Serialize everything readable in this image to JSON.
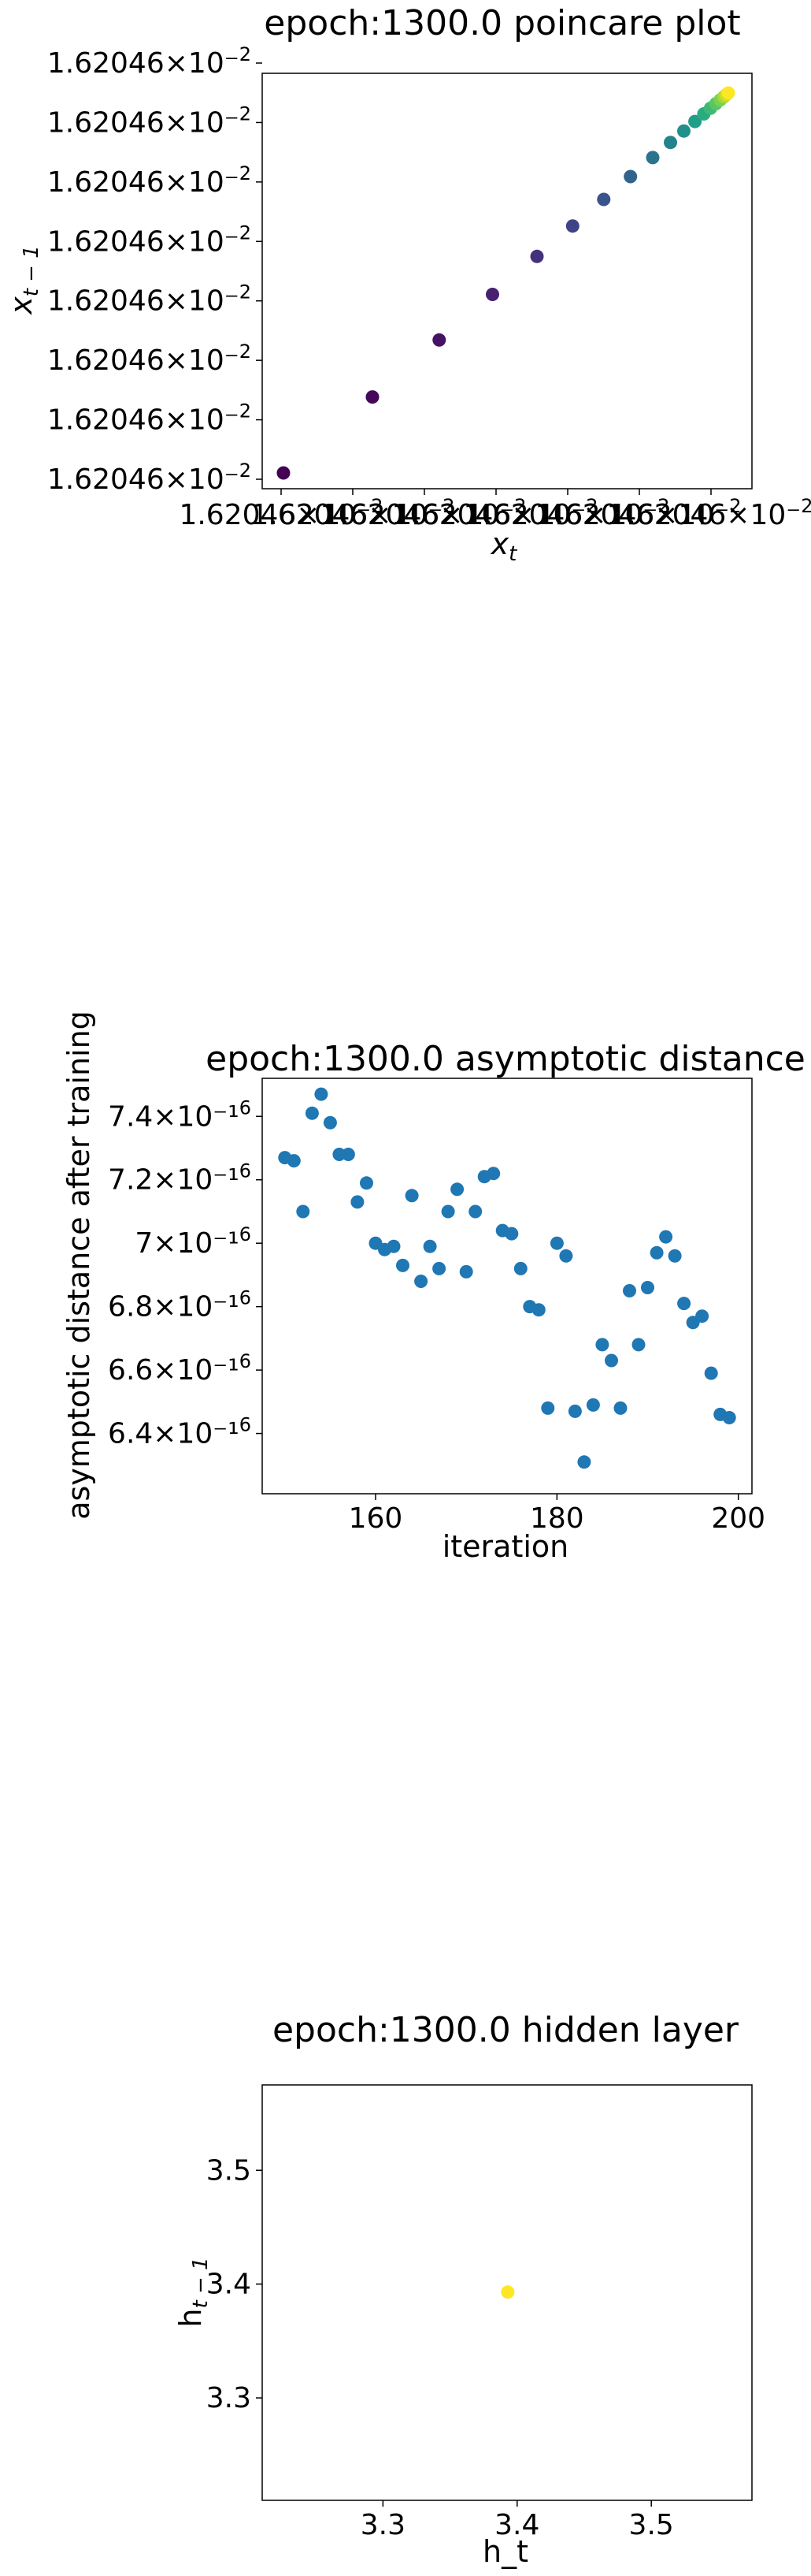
{
  "chart_data": [
    {
      "type": "scatter",
      "title": "epoch:1300.0 poincare plot",
      "xlabel": "x_t",
      "ylabel": "x_{t-1}",
      "colormap": "viridis",
      "xtick_labels": [
        "1.62046×10⁻²",
        "1.62046×10⁻²",
        "1.62046×10⁻²",
        "1.62046×10⁻²",
        "1.62046×10⁻²",
        "1.62046×10⁻²",
        "1.62046×10⁻²"
      ],
      "ytick_labels": [
        "1.62046×10⁻²",
        "1.62046×10⁻²",
        "1.62046×10⁻²",
        "1.62046×10⁻²",
        "1.62046×10⁻²",
        "1.62046×10⁻²",
        "1.62046×10⁻²",
        "1.62046×10⁻²"
      ],
      "xlim": [
        0,
        1
      ],
      "ylim": [
        0,
        1
      ],
      "points": [
        {
          "x": 0.0,
          "y": 0.0,
          "c": 0.0
        },
        {
          "x": 0.2,
          "y": 0.2,
          "c": 0.02
        },
        {
          "x": 0.35,
          "y": 0.35,
          "c": 0.05
        },
        {
          "x": 0.47,
          "y": 0.47,
          "c": 0.09
        },
        {
          "x": 0.57,
          "y": 0.57,
          "c": 0.14
        },
        {
          "x": 0.65,
          "y": 0.65,
          "c": 0.2
        },
        {
          "x": 0.72,
          "y": 0.72,
          "c": 0.26
        },
        {
          "x": 0.78,
          "y": 0.78,
          "c": 0.32
        },
        {
          "x": 0.83,
          "y": 0.83,
          "c": 0.38
        },
        {
          "x": 0.87,
          "y": 0.87,
          "c": 0.44
        },
        {
          "x": 0.9,
          "y": 0.9,
          "c": 0.5
        },
        {
          "x": 0.925,
          "y": 0.925,
          "c": 0.56
        },
        {
          "x": 0.945,
          "y": 0.945,
          "c": 0.62
        },
        {
          "x": 0.96,
          "y": 0.96,
          "c": 0.68
        },
        {
          "x": 0.972,
          "y": 0.972,
          "c": 0.74
        },
        {
          "x": 0.982,
          "y": 0.982,
          "c": 0.8
        },
        {
          "x": 0.99,
          "y": 0.99,
          "c": 0.86
        },
        {
          "x": 0.995,
          "y": 0.995,
          "c": 0.92
        },
        {
          "x": 1.0,
          "y": 1.0,
          "c": 1.0
        }
      ]
    },
    {
      "type": "scatter",
      "title": "epoch:1300.0 asymptotic distance",
      "xlabel": "iteration",
      "ylabel": "asymptotic distance after training",
      "color": "#1f77b4",
      "xlim": [
        147.5,
        201.5
      ],
      "ylim": [
        6.21e-16,
        7.52e-16
      ],
      "xticks": [
        160,
        180,
        200
      ],
      "yticks": [
        {
          "value": 6.4e-16,
          "label": "6.4×10⁻¹⁶"
        },
        {
          "value": 6.6e-16,
          "label": "6.6×10⁻¹⁶"
        },
        {
          "value": 6.8e-16,
          "label": "6.8×10⁻¹⁶"
        },
        {
          "value": 7e-16,
          "label": "7×10⁻¹⁶"
        },
        {
          "value": 7.2e-16,
          "label": "7.2×10⁻¹⁶"
        },
        {
          "value": 7.4e-16,
          "label": "7.4×10⁻¹⁶"
        }
      ],
      "x": [
        150,
        151,
        152,
        153,
        154,
        155,
        156,
        157,
        158,
        159,
        160,
        161,
        162,
        163,
        164,
        165,
        166,
        167,
        168,
        169,
        170,
        171,
        172,
        173,
        174,
        175,
        176,
        177,
        178,
        179,
        180,
        181,
        182,
        183,
        184,
        185,
        186,
        187,
        188,
        189,
        190,
        191,
        192,
        193,
        194,
        195,
        196,
        197,
        198,
        199
      ],
      "y": [
        7.27e-16,
        7.26e-16,
        7.1e-16,
        7.41e-16,
        7.47e-16,
        7.38e-16,
        7.28e-16,
        7.28e-16,
        7.13e-16,
        7.19e-16,
        7e-16,
        6.98e-16,
        6.99e-16,
        6.93e-16,
        7.15e-16,
        6.88e-16,
        6.99e-16,
        6.92e-16,
        7.1e-16,
        7.17e-16,
        6.91e-16,
        7.1e-16,
        7.21e-16,
        7.22e-16,
        7.04e-16,
        7.03e-16,
        6.92e-16,
        6.8e-16,
        6.79e-16,
        6.48e-16,
        7e-16,
        6.96e-16,
        6.47e-16,
        6.31e-16,
        6.49e-16,
        6.68e-16,
        6.63e-16,
        6.48e-16,
        6.85e-16,
        6.68e-16,
        6.86e-16,
        6.97e-16,
        7.02e-16,
        6.96e-16,
        6.81e-16,
        6.75e-16,
        6.77e-16,
        6.59e-16,
        6.46e-16,
        6.45e-16
      ]
    },
    {
      "type": "scatter",
      "title": "epoch:1300.0 hidden layer",
      "xlabel": "h_t",
      "ylabel": "h_{t-1}",
      "color": "#fde725",
      "xlim": [
        3.21,
        3.575
      ],
      "ylim": [
        3.21,
        3.575
      ],
      "xticks": [
        3.3,
        3.4,
        3.5
      ],
      "yticks": [
        3.3,
        3.4,
        3.5
      ],
      "points": [
        {
          "x": 3.393,
          "y": 3.393
        }
      ]
    }
  ]
}
